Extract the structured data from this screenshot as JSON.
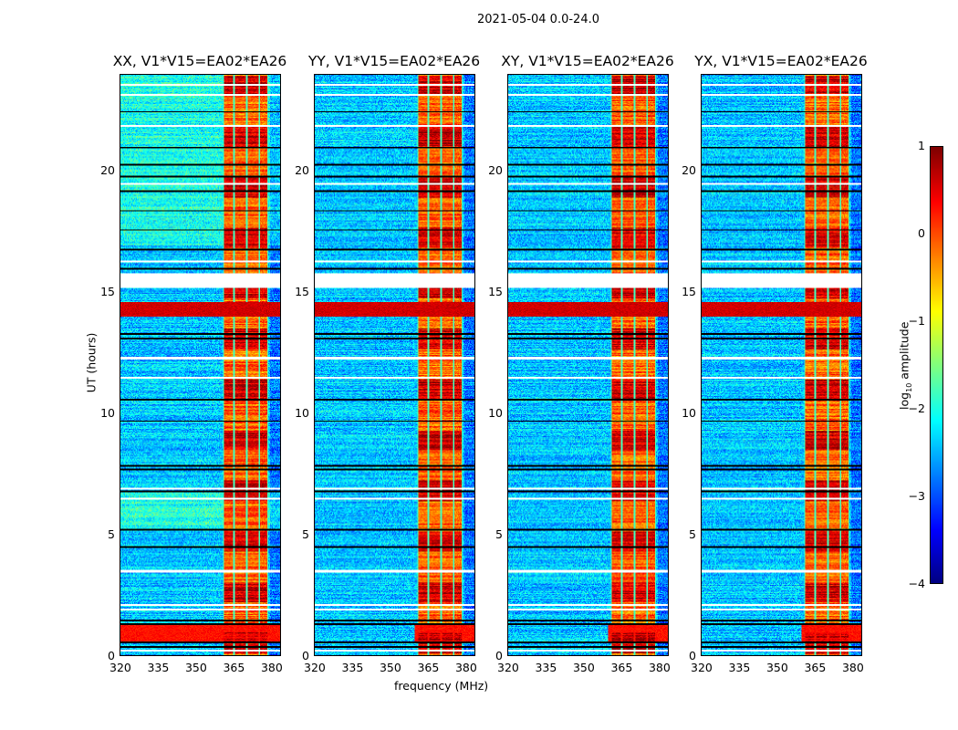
{
  "suptitle": "2021-05-04 0.0-24.0",
  "chart_data": {
    "type": "heatmap",
    "panels": [
      {
        "title": "XX, V1*V15=EA02*EA26"
      },
      {
        "title": "YY, V1*V15=EA02*EA26"
      },
      {
        "title": "XY, V1*V15=EA02*EA26"
      },
      {
        "title": "YX, V1*V15=EA02*EA26"
      }
    ],
    "xlabel": "frequency (MHz)",
    "ylabel": "UT (hours)",
    "xlim": [
      320,
      384
    ],
    "ylim": [
      0,
      24
    ],
    "xticks": [
      "320",
      "335",
      "350",
      "365",
      "380"
    ],
    "xtick_values": [
      320,
      335,
      350,
      365,
      380
    ],
    "yticks": [
      "0",
      "5",
      "10",
      "15",
      "20"
    ],
    "ytick_values": [
      0,
      5,
      10,
      15,
      20
    ],
    "colormap": "jet",
    "colorbar": {
      "label_main": "log",
      "label_sub": "10",
      "label_rest": " amplitude",
      "range": [
        -4,
        1
      ],
      "ticks": [
        "−4",
        "−3",
        "−2",
        "−1",
        "0",
        "1"
      ],
      "tick_values": [
        -4,
        -3,
        -2,
        -1,
        0,
        1
      ]
    },
    "features": {
      "rfi_band_mhz": [
        361,
        379
      ],
      "rfi_level": 0.2,
      "background_level": -2.4,
      "notch_channels_mhz": [
        361,
        365.5,
        370.5,
        375.5,
        379
      ],
      "data_gap_hours": [
        15.2,
        15.8
      ],
      "strong_rfi_hours": [
        14.0,
        14.6
      ]
    }
  }
}
